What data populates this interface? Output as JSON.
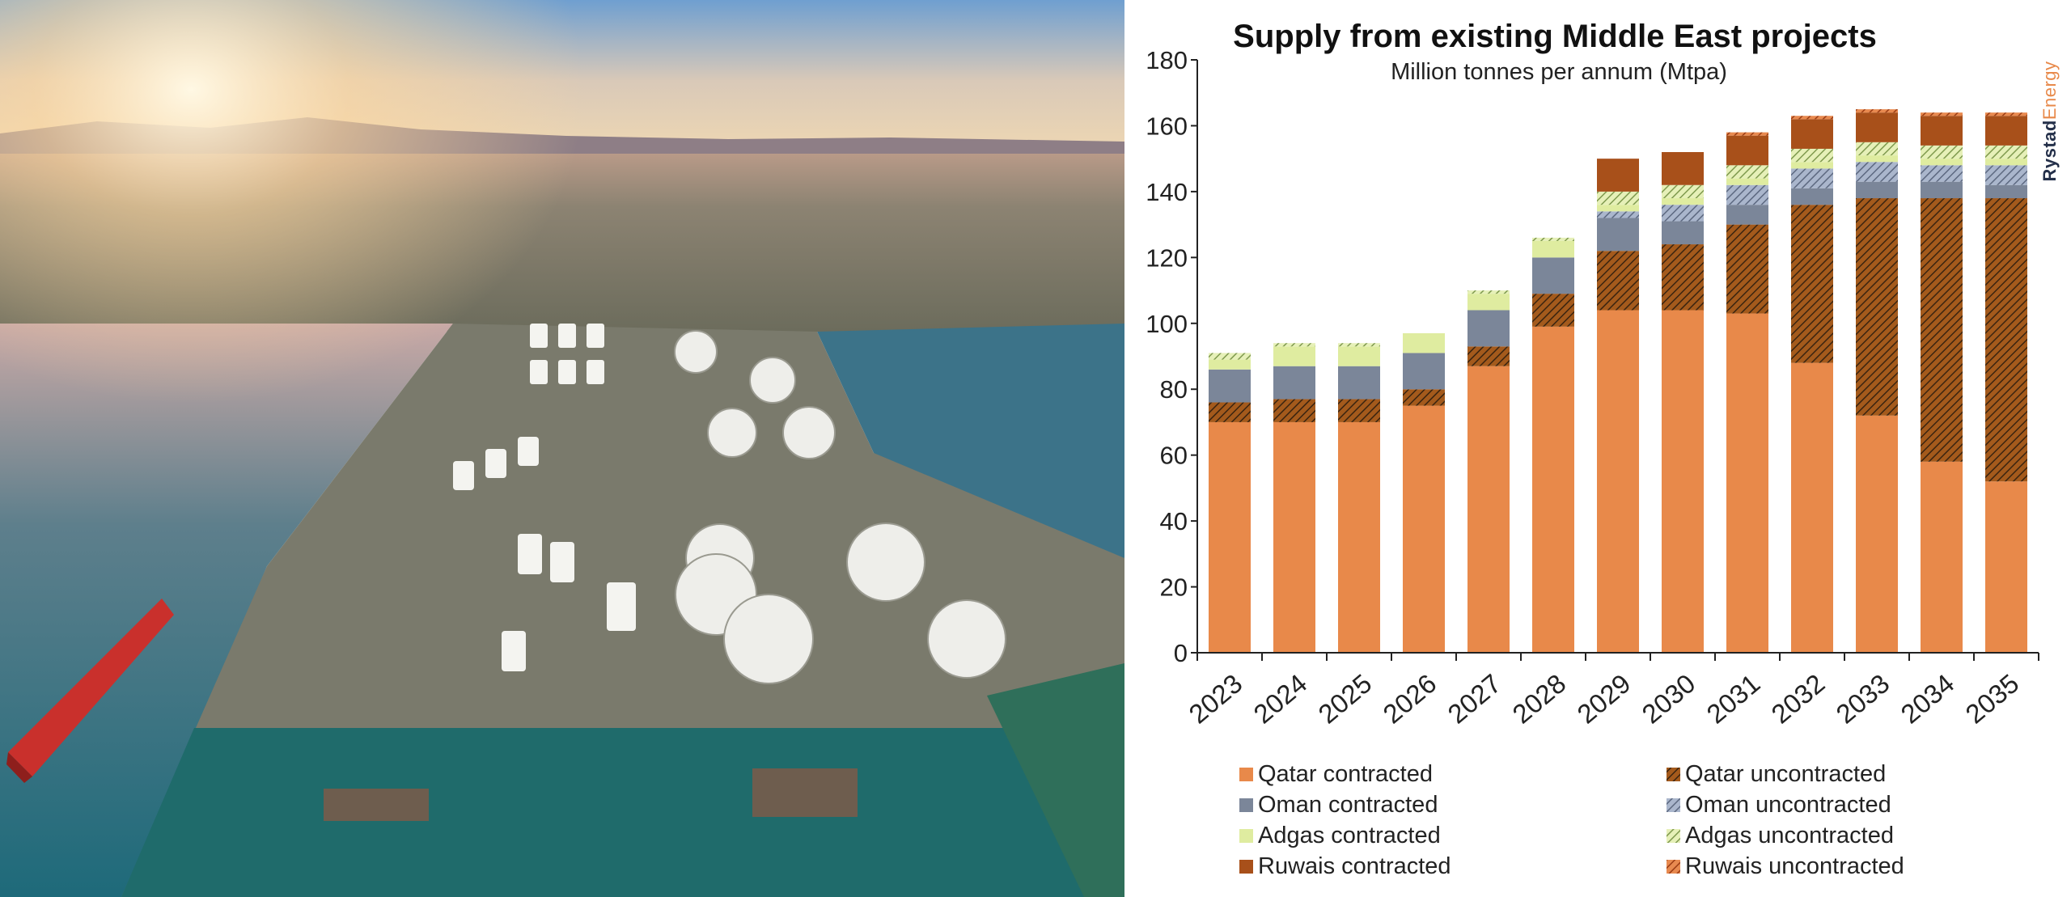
{
  "chart_data": {
    "type": "bar",
    "stacked": true,
    "title": "Supply from existing Middle East projects",
    "subtitle": "Million tonnes per annum (Mtpa)",
    "xlabel": "",
    "ylabel": "",
    "ylim": [
      0,
      180
    ],
    "yticks": [
      0,
      20,
      40,
      60,
      80,
      100,
      120,
      140,
      160,
      180
    ],
    "grid": false,
    "legend_position": "bottom",
    "categories": [
      "2023",
      "2024",
      "2025",
      "2026",
      "2027",
      "2028",
      "2029",
      "2030",
      "2031",
      "2032",
      "2033",
      "2034",
      "2035"
    ],
    "series": [
      {
        "name": "Qatar contracted",
        "color": "#e8894a",
        "hatch": false,
        "values": [
          70,
          70,
          70,
          75,
          87,
          99,
          104,
          104,
          103,
          88,
          72,
          58,
          52
        ]
      },
      {
        "name": "Qatar uncontracted",
        "color": "#a45a1c",
        "hatch": true,
        "values": [
          6,
          7,
          7,
          5,
          6,
          10,
          18,
          20,
          27,
          48,
          66,
          80,
          86
        ]
      },
      {
        "name": "Oman contracted",
        "color": "#7b8699",
        "hatch": false,
        "values": [
          10,
          10,
          10,
          11,
          11,
          11,
          10,
          7,
          6,
          5,
          5,
          5,
          4
        ]
      },
      {
        "name": "Oman uncontracted",
        "color": "#7b8699",
        "hatch": true,
        "values": [
          0,
          0,
          0,
          0,
          0,
          0,
          2,
          5,
          6,
          6,
          6,
          5,
          6
        ]
      },
      {
        "name": "Adgas contracted",
        "color": "#dfeca0",
        "hatch": false,
        "values": [
          3,
          6,
          6,
          6,
          5,
          5,
          2,
          2,
          2,
          2,
          2,
          2,
          2
        ]
      },
      {
        "name": "Adgas uncontracted",
        "color": "#a9c070",
        "hatch": true,
        "values": [
          2,
          1,
          1,
          0,
          1,
          1,
          4,
          4,
          4,
          4,
          4,
          4,
          4
        ]
      },
      {
        "name": "Ruwais contracted",
        "color": "#a8501a",
        "hatch": false,
        "values": [
          0,
          0,
          0,
          0,
          0,
          0,
          10,
          10,
          9,
          9,
          9,
          9,
          9
        ]
      },
      {
        "name": "Ruwais uncontracted",
        "color": "#d1622a",
        "hatch": true,
        "values": [
          0,
          0,
          0,
          0,
          0,
          0,
          0,
          0,
          1,
          1,
          1,
          1,
          1
        ]
      }
    ]
  },
  "brand": {
    "part1": "Rystad",
    "part2": "Energy"
  }
}
